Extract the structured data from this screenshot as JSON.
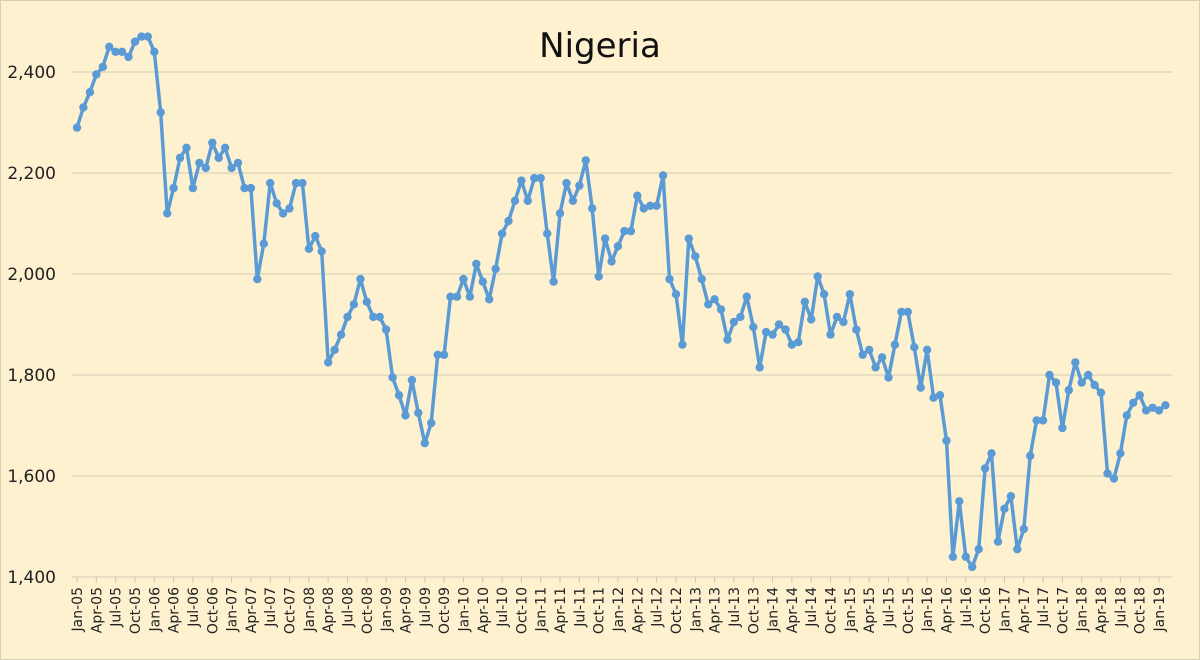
{
  "chart_data": {
    "type": "line",
    "title": "Nigeria",
    "xlabel": "",
    "ylabel": "",
    "ylim": [
      1400,
      2500
    ],
    "yticks": [
      1400,
      1600,
      1800,
      2000,
      2200,
      2400
    ],
    "ytick_labels": [
      "1,400",
      "1,600",
      "1,800",
      "2,000",
      "2,200",
      "2,400"
    ],
    "grid": true,
    "legend": null,
    "x_start": "Jan-05",
    "x_tick_labels": [
      "Jan-05",
      "Apr-05",
      "Jul-05",
      "Oct-05",
      "Jan-06",
      "Apr-06",
      "Jul-06",
      "Oct-06",
      "Jan-07",
      "Apr-07",
      "Jul-07",
      "Oct-07",
      "Jan-08",
      "Apr-08",
      "Jul-08",
      "Oct-08",
      "Jan-09",
      "Apr-09",
      "Jul-09",
      "Oct-09",
      "Jan-10",
      "Apr-10",
      "Jul-10",
      "Oct-10",
      "Jan-11",
      "Apr-11",
      "Jul-11",
      "Oct-11",
      "Jan-12",
      "Apr-12",
      "Jul-12",
      "Oct-12",
      "Jan-13",
      "Apr-13",
      "Jul-13",
      "Oct-13",
      "Jan-14",
      "Apr-14",
      "Jul-14",
      "Oct-14",
      "Jan-15",
      "Apr-15",
      "Jul-15",
      "Oct-15",
      "Jan-16",
      "Apr-16",
      "Jul-16",
      "Oct-16",
      "Jan-17",
      "Apr-17",
      "Jul-17",
      "Oct-17",
      "Jan-18",
      "Apr-18",
      "Jul-18",
      "Oct-18",
      "Jan-19"
    ],
    "series": [
      {
        "name": "Nigeria",
        "color": "#5b9bd5",
        "values": [
          2290,
          2330,
          2360,
          2395,
          2410,
          2450,
          2440,
          2440,
          2430,
          2460,
          2470,
          2470,
          2440,
          2320,
          2120,
          2170,
          2230,
          2250,
          2170,
          2220,
          2210,
          2260,
          2230,
          2250,
          2210,
          2220,
          2170,
          2170,
          1990,
          2060,
          2180,
          2140,
          2120,
          2130,
          2180,
          2180,
          2050,
          2075,
          2045,
          1825,
          1850,
          1880,
          1915,
          1940,
          1990,
          1945,
          1915,
          1915,
          1890,
          1795,
          1760,
          1720,
          1790,
          1725,
          1665,
          1705,
          1840,
          1840,
          1955,
          1955,
          1990,
          1955,
          2020,
          1985,
          1950,
          2010,
          2080,
          2105,
          2145,
          2185,
          2145,
          2190,
          2190,
          2080,
          1985,
          2120,
          2180,
          2145,
          2175,
          2225,
          2130,
          1995,
          2070,
          2025,
          2055,
          2085,
          2085,
          2155,
          2130,
          2135,
          2135,
          2195,
          1990,
          1960,
          1860,
          2070,
          2035,
          1990,
          1940,
          1950,
          1930,
          1870,
          1905,
          1915,
          1955,
          1895,
          1815,
          1885,
          1880,
          1900,
          1890,
          1860,
          1865,
          1945,
          1910,
          1995,
          1960,
          1880,
          1915,
          1905,
          1960,
          1890,
          1840,
          1850,
          1815,
          1835,
          1795,
          1860,
          1925,
          1925,
          1855,
          1775,
          1850,
          1755,
          1760,
          1670,
          1440,
          1550,
          1440,
          1420,
          1455,
          1615,
          1645,
          1470,
          1535,
          1560,
          1455,
          1495,
          1640,
          1710,
          1710,
          1800,
          1785,
          1695,
          1770,
          1825,
          1785,
          1800,
          1780,
          1765,
          1605,
          1595,
          1645,
          1720,
          1745,
          1760,
          1730,
          1735,
          1730,
          1740
        ]
      }
    ]
  }
}
